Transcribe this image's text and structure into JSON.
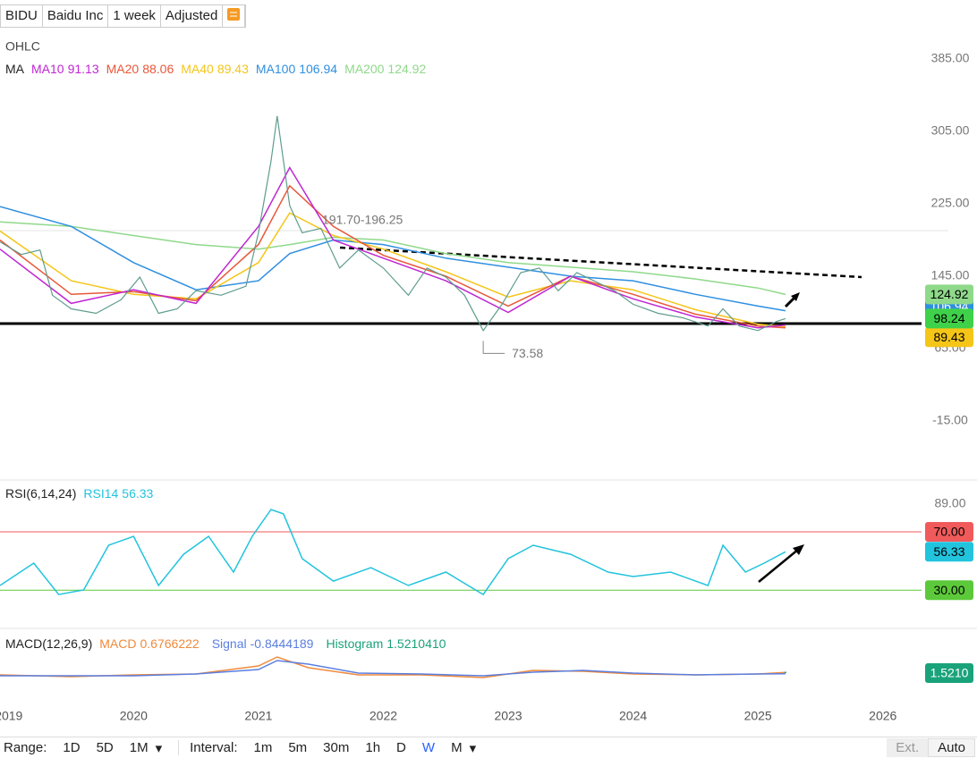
{
  "toolbar": {
    "symbol": "BIDU",
    "name": "Baidu Inc",
    "interval": "1 week",
    "adjustment": "Adjusted"
  },
  "chart_data": [
    {
      "type": "line",
      "ohlc_label": "OHLC",
      "ma_label": "MA",
      "xlim": [
        2018.93,
        2026.31
      ],
      "xticks": [
        2019,
        2020,
        2021,
        2022,
        2023,
        2024,
        2025,
        2026
      ],
      "ylim": [
        -78.2,
        420.6
      ],
      "yticks": [
        {
          "value": 385,
          "label": "385.00"
        },
        {
          "value": 305,
          "label": "305.00"
        },
        {
          "value": 225,
          "label": "225.00"
        },
        {
          "value": 145,
          "label": "145.00"
        },
        {
          "value": 65,
          "label": "65.00"
        },
        {
          "value": -15,
          "label": "-15.00"
        }
      ],
      "price": {
        "color": "#5f9c8e",
        "x": [
          2018.93,
          2019.1,
          2019.25,
          2019.35,
          2019.5,
          2019.7,
          2019.9,
          2020.05,
          2020.2,
          2020.35,
          2020.5,
          2020.7,
          2020.9,
          2021.0,
          2021.1,
          2021.15,
          2021.25,
          2021.35,
          2021.5,
          2021.65,
          2021.8,
          2022.0,
          2022.2,
          2022.35,
          2022.5,
          2022.65,
          2022.8,
          2022.95,
          2023.1,
          2023.25,
          2023.4,
          2023.55,
          2023.7,
          2023.85,
          2024.0,
          2024.2,
          2024.4,
          2024.6,
          2024.72,
          2024.85,
          2025.0,
          2025.15,
          2025.22
        ],
        "values": [
          183,
          169,
          174,
          124,
          109,
          104,
          119,
          144,
          104,
          109,
          129,
          124,
          134,
          193,
          272,
          322,
          223,
          193,
          198,
          154,
          174,
          154,
          124,
          154,
          144,
          124,
          85,
          114,
          149,
          154,
          129,
          149,
          139,
          129,
          114,
          104,
          99,
          90,
          109,
          90,
          85,
          95,
          98.24
        ]
      },
      "series": [
        {
          "name": "MA10",
          "color": "#c026d3",
          "x": [
            2018.93,
            2019.5,
            2020.0,
            2020.5,
            2021.0,
            2021.25,
            2021.6,
            2022.0,
            2022.5,
            2023.0,
            2023.5,
            2024.0,
            2024.5,
            2025.0,
            2025.22
          ],
          "values": [
            175,
            115,
            130,
            115,
            200,
            265,
            185,
            165,
            140,
            105,
            145,
            120,
            100,
            88,
            91.13
          ]
        },
        {
          "name": "MA20",
          "color": "#e8573a",
          "x": [
            2018.93,
            2019.5,
            2020.0,
            2020.5,
            2021.0,
            2021.25,
            2021.6,
            2022.0,
            2022.5,
            2023.0,
            2023.5,
            2024.0,
            2024.5,
            2025.0,
            2025.22
          ],
          "values": [
            185,
            125,
            128,
            118,
            180,
            245,
            200,
            168,
            145,
            112,
            145,
            125,
            103,
            90,
            88.06
          ]
        },
        {
          "name": "MA40",
          "color": "#f5c518",
          "x": [
            2018.93,
            2019.5,
            2020.0,
            2020.5,
            2021.0,
            2021.25,
            2021.6,
            2022.0,
            2022.5,
            2023.0,
            2023.5,
            2024.0,
            2024.5,
            2025.0,
            2025.22
          ],
          "values": [
            195,
            140,
            125,
            120,
            160,
            215,
            190,
            175,
            150,
            122,
            140,
            130,
            108,
            92,
            89.43
          ]
        },
        {
          "name": "MA100",
          "color": "#2f8fe0",
          "x": [
            2018.93,
            2019.5,
            2020.0,
            2020.5,
            2021.0,
            2021.25,
            2021.6,
            2022.0,
            2022.5,
            2023.0,
            2023.5,
            2024.0,
            2024.5,
            2025.0,
            2025.22
          ],
          "values": [
            222,
            200,
            160,
            130,
            140,
            170,
            185,
            180,
            165,
            155,
            145,
            140,
            125,
            112,
            106.94
          ]
        },
        {
          "name": "MA200",
          "color": "#8fd98a",
          "x": [
            2018.93,
            2019.5,
            2020.0,
            2020.5,
            2021.0,
            2021.25,
            2021.6,
            2022.0,
            2022.5,
            2023.0,
            2023.5,
            2024.0,
            2024.5,
            2025.0,
            2025.22
          ],
          "values": [
            205,
            200,
            190,
            180,
            175,
            180,
            188,
            185,
            170,
            160,
            155,
            150,
            142,
            132,
            124.92
          ]
        }
      ],
      "annotations": {
        "range_label": "191.70-196.25",
        "low": {
          "x": 2022.8,
          "value": 73.58
        }
      }
    },
    {
      "type": "line",
      "title": "RSI(6,14,24)",
      "xlim": [
        2018.93,
        2026.31
      ],
      "ylim": [
        5.6,
        103.7
      ],
      "yticks": [
        {
          "value": 89,
          "label": "89.00"
        }
      ],
      "levels": [
        {
          "value": 70,
          "label": "70.00",
          "color": "#f05a5a"
        },
        {
          "value": 30,
          "label": "30.00",
          "color": "#5cc93a"
        }
      ],
      "series": [
        {
          "name": "RSI14",
          "color": "#22c3dd",
          "x": [
            2018.93,
            2019.2,
            2019.4,
            2019.6,
            2019.8,
            2020.0,
            2020.2,
            2020.4,
            2020.6,
            2020.8,
            2020.95,
            2021.1,
            2021.2,
            2021.35,
            2021.6,
            2021.9,
            2022.2,
            2022.5,
            2022.8,
            2023.0,
            2023.2,
            2023.5,
            2023.8,
            2024.0,
            2024.3,
            2024.6,
            2024.72,
            2024.9,
            2025.05,
            2025.22
          ],
          "values": [
            33.2,
            48.5,
            27.0,
            30.1,
            60.8,
            66.9,
            33.2,
            54.6,
            66.9,
            42.4,
            66.9,
            85.3,
            82.3,
            51.6,
            36.2,
            45.4,
            33.2,
            42.4,
            27.0,
            51.6,
            60.8,
            54.6,
            42.4,
            39.3,
            42.4,
            33.2,
            60.8,
            42.4,
            48.5,
            56.33
          ]
        }
      ]
    },
    {
      "type": "line",
      "title": "MACD(12,26,9)",
      "xlim": [
        2018.93,
        2026.31
      ],
      "ylim": [
        -40,
        40
      ],
      "series": [
        {
          "name": "MACD",
          "color": "#f08a3c",
          "x": [
            2018.93,
            2019.5,
            2020.0,
            2020.5,
            2021.0,
            2021.15,
            2021.4,
            2021.8,
            2022.3,
            2022.8,
            2023.2,
            2023.6,
            2024.0,
            2024.5,
            2025.0,
            2025.22
          ],
          "values": [
            -2,
            -4,
            -2,
            -1,
            8,
            18,
            6,
            -2,
            -2,
            -5,
            3,
            2,
            -1,
            -2,
            -1,
            0.6766222
          ]
        },
        {
          "name": "Signal",
          "color": "#5b7fe0",
          "x": [
            2018.93,
            2019.5,
            2020.0,
            2020.5,
            2021.0,
            2021.15,
            2021.4,
            2021.8,
            2022.3,
            2022.8,
            2023.2,
            2023.6,
            2024.0,
            2024.5,
            2025.0,
            2025.22
          ],
          "values": [
            -3,
            -3,
            -3,
            -1,
            4,
            14,
            10,
            0,
            -1,
            -3,
            1,
            3,
            0,
            -2,
            -1,
            -0.8444189
          ]
        }
      ],
      "histogram": {
        "name": "Histogram",
        "color": "#1aa37a",
        "x": 2025.22,
        "value": 1.521041,
        "legend_label": "1.5210410",
        "badge_label": "1.5210"
      }
    }
  ],
  "bottom_bar": {
    "range_label": "Range:",
    "ranges": [
      "1D",
      "5D",
      "1M"
    ],
    "interval_label": "Interval:",
    "intervals": [
      "1m",
      "5m",
      "30m",
      "1h",
      "D",
      "W",
      "M"
    ],
    "ext": "Ext.",
    "auto": "Auto"
  }
}
